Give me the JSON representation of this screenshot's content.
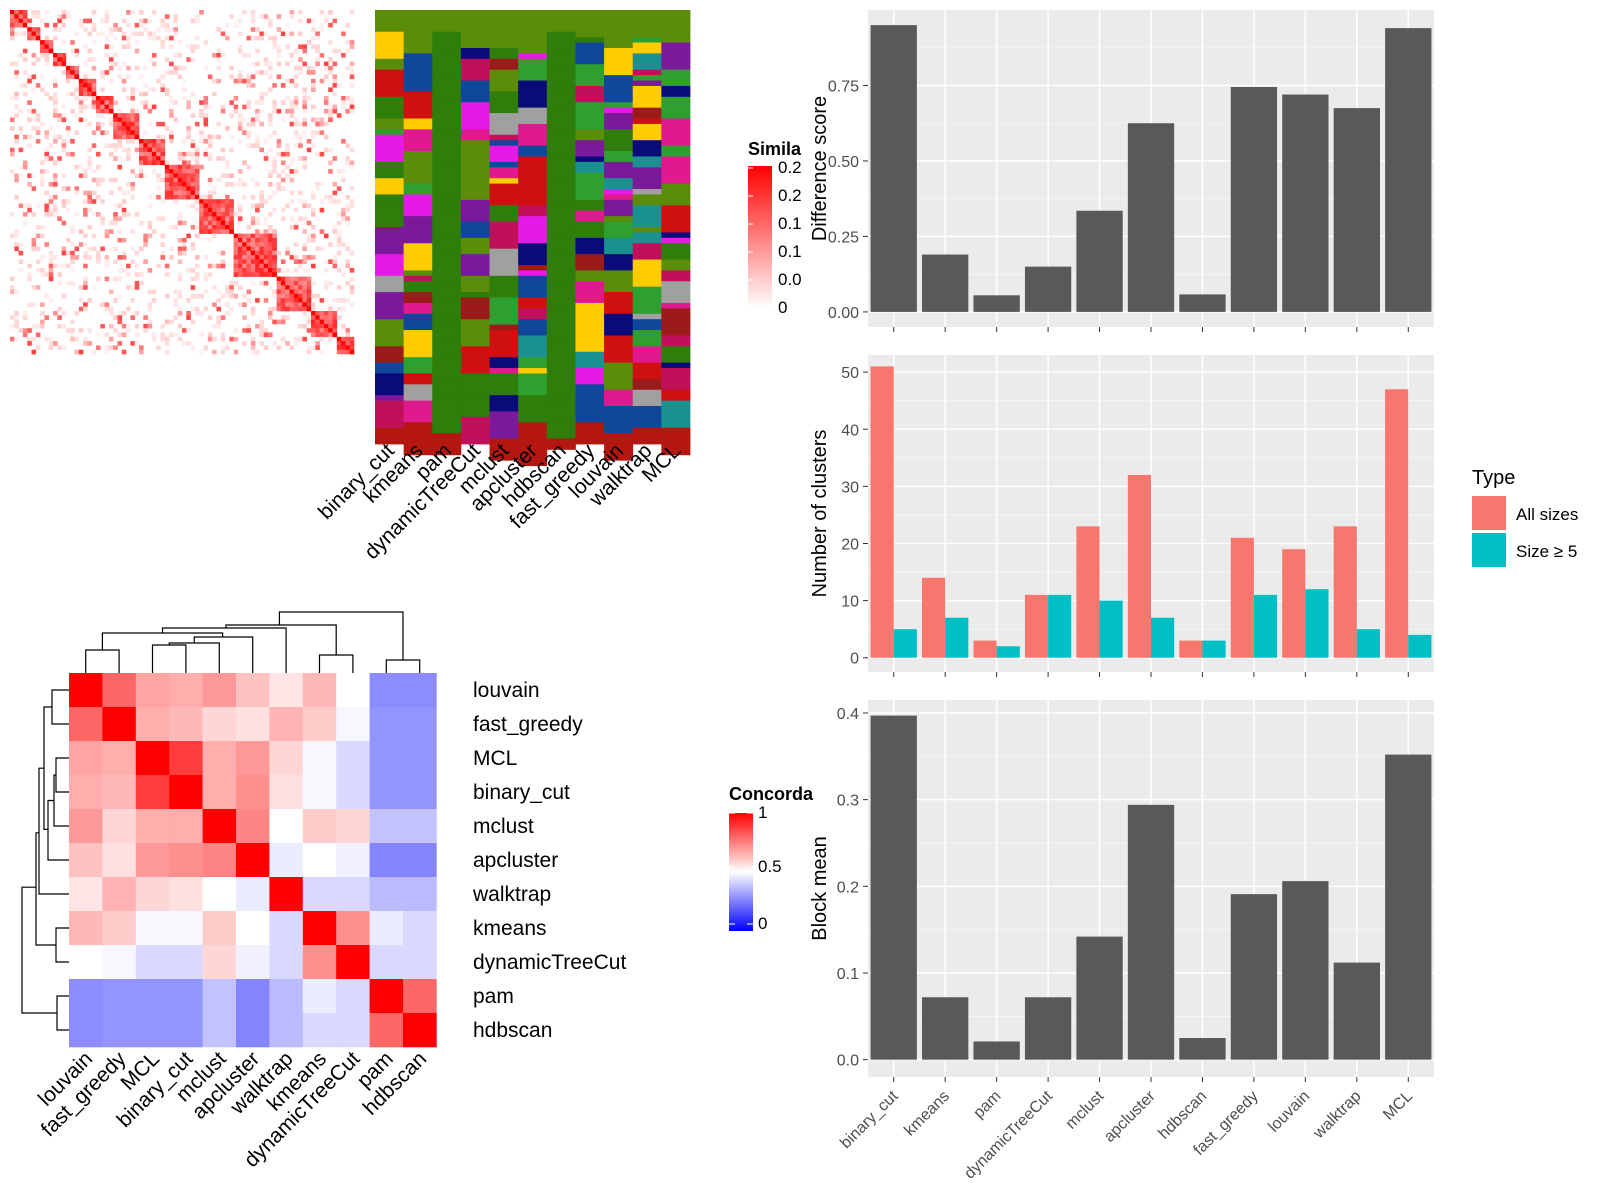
{
  "methods_order_top": [
    "binary_cut",
    "kmeans",
    "pam",
    "dynamicTreeCut",
    "mclust",
    "apcluster",
    "hdbscan",
    "fast_greedy",
    "louvain",
    "walktrap",
    "MCL"
  ],
  "similarity_legend": {
    "title": "Simila",
    "ticks": [
      "0.2",
      "0.2",
      "0.1",
      "0.1",
      "0.0",
      "0"
    ]
  },
  "concordance_legend": {
    "title": "Concorda",
    "ticks": [
      "1",
      "0.5",
      "0"
    ]
  },
  "type_legend": {
    "title": "Type",
    "items": [
      "All sizes",
      "Size ≥ 5"
    ]
  },
  "colors": {
    "panel_bg": "#EBEBEB",
    "bar_dark": "#595959",
    "all_sizes": "#F8766D",
    "size_ge5": "#00BFC4",
    "heat_high": "#FF0000",
    "heat_mid": "#FFFFFF",
    "heat_low": "#0000FF"
  },
  "chart_data": [
    {
      "type": "bar",
      "categories": [
        "binary_cut",
        "kmeans",
        "pam",
        "dynamicTreeCut",
        "mclust",
        "apcluster",
        "hdbscan",
        "fast_greedy",
        "louvain",
        "walktrap",
        "MCL"
      ],
      "values": [
        0.95,
        0.19,
        0.055,
        0.15,
        0.335,
        0.625,
        0.058,
        0.745,
        0.72,
        0.675,
        0.94
      ],
      "ylabel": "Difference score",
      "yticks": [
        "0.00",
        "0.25",
        "0.50",
        "0.75"
      ],
      "ylim": [
        -0.05,
        1.0
      ]
    },
    {
      "type": "bar",
      "categories": [
        "binary_cut",
        "kmeans",
        "pam",
        "dynamicTreeCut",
        "mclust",
        "apcluster",
        "hdbscan",
        "fast_greedy",
        "louvain",
        "walktrap",
        "MCL"
      ],
      "series": [
        {
          "name": "All sizes",
          "values": [
            51,
            14,
            3,
            11,
            23,
            32,
            3,
            21,
            19,
            23,
            47
          ]
        },
        {
          "name": "Size ≥ 5",
          "values": [
            5,
            7,
            2,
            11,
            10,
            7,
            3,
            11,
            12,
            5,
            4
          ]
        }
      ],
      "ylabel": "Number of clusters",
      "yticks": [
        "0",
        "10",
        "20",
        "30",
        "40",
        "50"
      ],
      "ylim": [
        -2.5,
        53
      ]
    },
    {
      "type": "bar",
      "categories": [
        "binary_cut",
        "kmeans",
        "pam",
        "dynamicTreeCut",
        "mclust",
        "apcluster",
        "hdbscan",
        "fast_greedy",
        "louvain",
        "walktrap",
        "MCL"
      ],
      "values": [
        0.397,
        0.072,
        0.021,
        0.072,
        0.142,
        0.294,
        0.025,
        0.191,
        0.206,
        0.112,
        0.352
      ],
      "ylabel": "Block mean",
      "yticks": [
        "0.0",
        "0.1",
        "0.2",
        "0.3",
        "0.4"
      ],
      "ylim": [
        -0.02,
        0.415
      ]
    },
    {
      "type": "heatmap",
      "rows": [
        "louvain",
        "fast_greedy",
        "MCL",
        "binary_cut",
        "mclust",
        "apcluster",
        "walktrap",
        "kmeans",
        "dynamicTreeCut",
        "pam",
        "hdbscan"
      ],
      "cols": [
        "louvain",
        "fast_greedy",
        "MCL",
        "binary_cut",
        "mclust",
        "apcluster",
        "walktrap",
        "kmeans",
        "dynamicTreeCut",
        "pam",
        "hdbscan"
      ],
      "legend_title": "Concorda",
      "values": [
        [
          1.0,
          0.8,
          0.68,
          0.66,
          0.7,
          0.62,
          0.55,
          0.64,
          0.5,
          0.2,
          0.2
        ],
        [
          0.8,
          1.0,
          0.66,
          0.64,
          0.58,
          0.56,
          0.65,
          0.6,
          0.48,
          0.22,
          0.22
        ],
        [
          0.68,
          0.66,
          1.0,
          0.88,
          0.66,
          0.7,
          0.58,
          0.48,
          0.4,
          0.22,
          0.22
        ],
        [
          0.66,
          0.64,
          0.88,
          1.0,
          0.66,
          0.72,
          0.56,
          0.48,
          0.4,
          0.22,
          0.22
        ],
        [
          0.7,
          0.58,
          0.66,
          0.66,
          1.0,
          0.74,
          0.5,
          0.6,
          0.58,
          0.34,
          0.34
        ],
        [
          0.62,
          0.56,
          0.7,
          0.72,
          0.74,
          1.0,
          0.45,
          0.5,
          0.46,
          0.18,
          0.18
        ],
        [
          0.55,
          0.65,
          0.58,
          0.56,
          0.5,
          0.45,
          1.0,
          0.4,
          0.4,
          0.32,
          0.32
        ],
        [
          0.64,
          0.6,
          0.48,
          0.48,
          0.6,
          0.5,
          0.4,
          1.0,
          0.72,
          0.45,
          0.4
        ],
        [
          0.5,
          0.48,
          0.4,
          0.4,
          0.58,
          0.46,
          0.4,
          0.72,
          1.0,
          0.4,
          0.4
        ],
        [
          0.2,
          0.22,
          0.22,
          0.22,
          0.34,
          0.18,
          0.32,
          0.45,
          0.4,
          1.0,
          0.8
        ],
        [
          0.2,
          0.22,
          0.22,
          0.22,
          0.34,
          0.18,
          0.32,
          0.4,
          0.4,
          0.8,
          1.0
        ]
      ]
    }
  ]
}
